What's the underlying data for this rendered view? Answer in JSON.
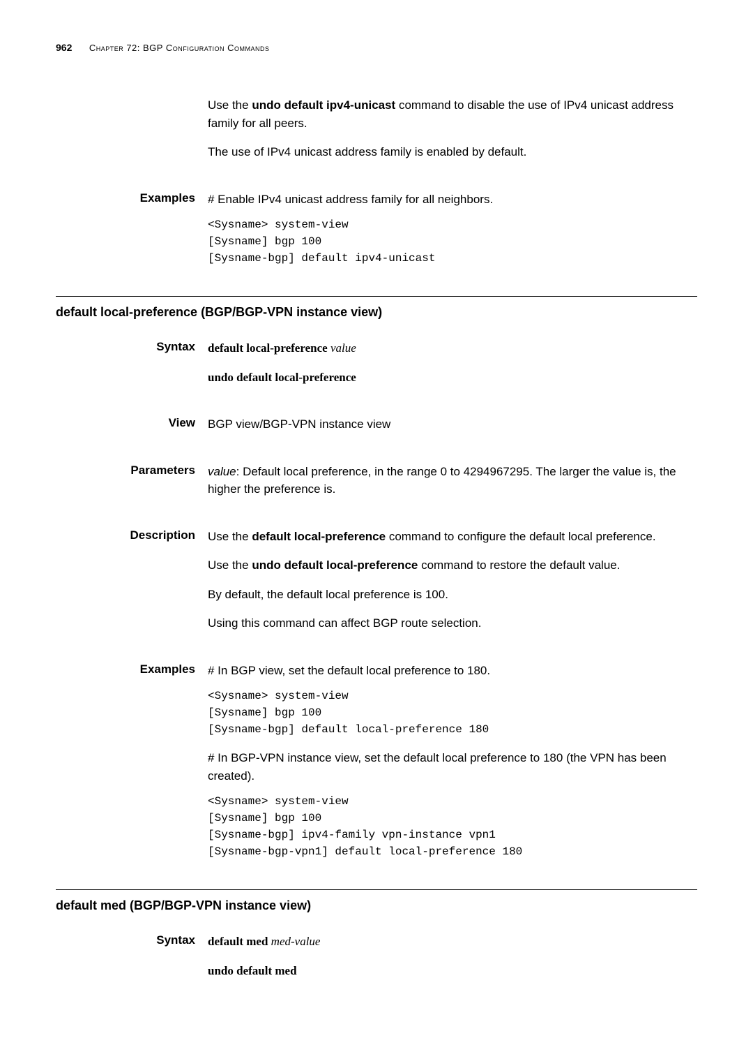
{
  "header": {
    "page_number": "962",
    "chapter": "Chapter 72: BGP Configuration Commands"
  },
  "intro": {
    "p1_pre": "Use the ",
    "p1_bold": "undo default ipv4-unicast",
    "p1_post": " command to disable the use of IPv4 unicast address family for all peers.",
    "p2": "The use of IPv4 unicast address family is enabled by default."
  },
  "examples1": {
    "label": "Examples",
    "desc": "# Enable IPv4 unicast address family for all neighbors.",
    "code": "<Sysname> system-view\n[Sysname] bgp 100\n[Sysname-bgp] default ipv4-unicast"
  },
  "section1": {
    "title": "default local-preference (BGP/BGP-VPN instance view)",
    "syntax": {
      "label": "Syntax",
      "line1_bold": "default local-preference",
      "line1_italic": " value",
      "line2": "undo default local-preference"
    },
    "view": {
      "label": "View",
      "text": "BGP view/BGP-VPN instance view"
    },
    "parameters": {
      "label": "Parameters",
      "p1_italic": "value",
      "p1_rest": ": Default local preference, in the range 0 to 4294967295. The larger the value is, the higher the preference is."
    },
    "description": {
      "label": "Description",
      "p1_pre": "Use the ",
      "p1_bold": "default local-preference",
      "p1_post": " command to configure the default local preference.",
      "p2_pre": "Use the ",
      "p2_bold": "undo default local-preference",
      "p2_post": " command to restore the default value.",
      "p3": "By default, the default local preference is 100.",
      "p4": "Using this command can affect BGP route selection."
    },
    "examples": {
      "label": "Examples",
      "desc1": "# In BGP view, set the default local preference to 180.",
      "code1": "<Sysname> system-view\n[Sysname] bgp 100\n[Sysname-bgp] default local-preference 180",
      "desc2": "# In BGP-VPN instance view, set the default local preference to 180 (the VPN has been created).",
      "code2": "<Sysname> system-view\n[Sysname] bgp 100\n[Sysname-bgp] ipv4-family vpn-instance vpn1\n[Sysname-bgp-vpn1] default local-preference 180"
    }
  },
  "section2": {
    "title": "default med (BGP/BGP-VPN instance view)",
    "syntax": {
      "label": "Syntax",
      "line1_bold": "default med",
      "line1_italic": " med-value",
      "line2": "undo default med"
    }
  }
}
